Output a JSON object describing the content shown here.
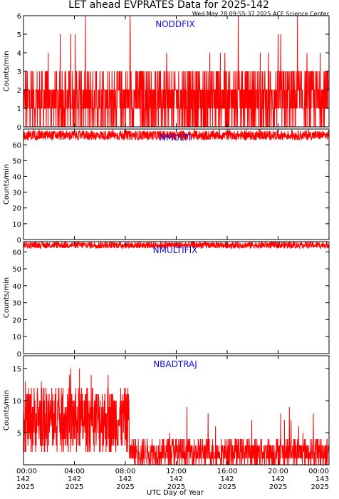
{
  "title": "LET ahead EVPRATES Data for 2025-142",
  "timestamp": "Wed May 28 09:55:37 2025 ACE Science Center",
  "chart_data": {
    "type": "line",
    "xlabel": "UTC Day of Year",
    "x_ticks": [
      {
        "hour": 0,
        "time": "00:00",
        "doy": "142",
        "year": "2025"
      },
      {
        "hour": 4,
        "time": "04:00",
        "doy": "142",
        "year": "2025"
      },
      {
        "hour": 8,
        "time": "08:00",
        "doy": "142",
        "year": "2025"
      },
      {
        "hour": 12,
        "time": "12:00",
        "doy": "142",
        "year": "2025"
      },
      {
        "hour": 16,
        "time": "16:00",
        "doy": "142",
        "year": "2025"
      },
      {
        "hour": 20,
        "time": "20:00",
        "doy": "142",
        "year": "2025"
      },
      {
        "hour": 24,
        "time": "00:00",
        "doy": "143",
        "year": "2025"
      }
    ],
    "xlim": [
      0,
      24
    ],
    "color": "#ff0000",
    "panels": [
      {
        "name": "NODDFIX",
        "ylabel": "Counts/min",
        "ylim": [
          0,
          6
        ],
        "yticks": [
          0,
          1,
          2,
          3,
          4,
          5,
          6
        ],
        "segments": [
          {
            "from": 0,
            "to": 24,
            "typical_min": 0,
            "typical_max": 3,
            "spike_max": 6
          }
        ]
      },
      {
        "name": "NMULTI",
        "ylabel": "Counts/min",
        "ylim": [
          0,
          70
        ],
        "yticks": [
          0,
          10,
          20,
          30,
          40,
          50,
          60
        ],
        "segments": [
          {
            "from": 0,
            "to": 24,
            "typical_min": 63,
            "typical_max": 69,
            "spike_max": 71
          }
        ]
      },
      {
        "name": "NMULTIFIX",
        "ylabel": "Counts/min",
        "ylim": [
          0,
          66
        ],
        "yticks": [
          0,
          10,
          20,
          30,
          40,
          50,
          60
        ],
        "segments": [
          {
            "from": 0,
            "to": 24,
            "typical_min": 62,
            "typical_max": 66,
            "spike_max": 66
          }
        ]
      },
      {
        "name": "NBADTRAJ",
        "ylabel": "Counts/min",
        "ylim": [
          0,
          17
        ],
        "yticks": [
          5,
          10,
          15
        ],
        "segments": [
          {
            "from": 0,
            "to": 8.3,
            "typical_min": 2,
            "typical_max": 12,
            "spike_max": 16
          },
          {
            "from": 8.3,
            "to": 24,
            "typical_min": 0,
            "typical_max": 4,
            "spike_max": 9
          }
        ]
      }
    ]
  }
}
